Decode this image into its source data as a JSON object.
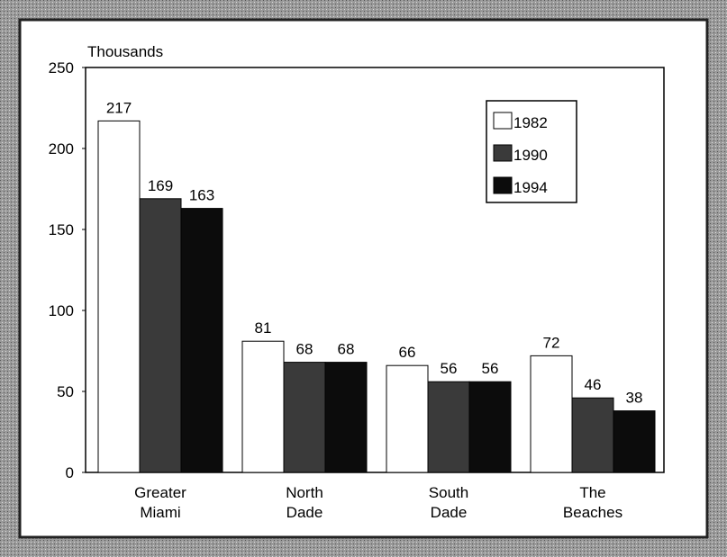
{
  "chart_data": {
    "type": "bar",
    "y_axis_label": "Thousands",
    "categories": [
      "Greater Miami",
      "North Dade",
      "South Dade",
      "The Beaches"
    ],
    "series": [
      {
        "name": "1982",
        "color": "#ffffff",
        "values": [
          217,
          81,
          66,
          72
        ]
      },
      {
        "name": "1990",
        "color": "#3a3a3a",
        "values": [
          169,
          68,
          56,
          46
        ]
      },
      {
        "name": "1994",
        "color": "#0c0c0c",
        "values": [
          163,
          68,
          56,
          38
        ]
      }
    ],
    "ylim": [
      0,
      250
    ],
    "yticks": [
      0,
      50,
      100,
      150,
      200,
      250
    ],
    "legend": "upper right",
    "data_labels": true
  }
}
